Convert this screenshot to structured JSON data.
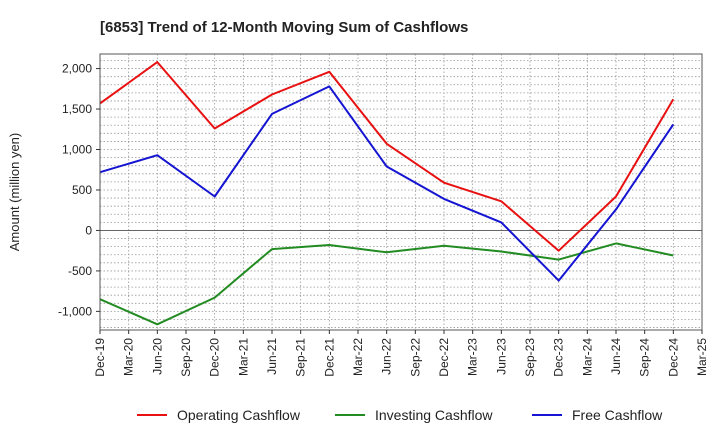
{
  "chart_data": {
    "type": "line",
    "title": "[6853]  Trend of 12-Month Moving Sum of Cashflows",
    "ylabel": "Amount (million yen)",
    "xlabel": "",
    "categories": [
      "Dec-19",
      "Mar-20",
      "Jun-20",
      "Sep-20",
      "Dec-20",
      "Mar-21",
      "Jun-21",
      "Sep-21",
      "Dec-21",
      "Mar-22",
      "Jun-22",
      "Sep-22",
      "Dec-22",
      "Mar-23",
      "Jun-23",
      "Sep-23",
      "Dec-23",
      "Mar-24",
      "Jun-24",
      "Sep-24",
      "Dec-24",
      "Mar-25"
    ],
    "ylim": [
      -1230,
      2180
    ],
    "yticks": [
      -1000,
      -500,
      0,
      500,
      1000,
      1500,
      2000
    ],
    "ytick_labels": [
      "-1,000",
      "-500",
      "0",
      "500",
      "1,000",
      "1,500",
      "2,000"
    ],
    "grid": true,
    "legend_position": "bottom",
    "series": [
      {
        "name": "Operating Cashflow",
        "color": "#e81010",
        "points": [
          [
            0,
            1570
          ],
          [
            2,
            2080
          ],
          [
            4,
            1260
          ],
          [
            6,
            1680
          ],
          [
            8,
            1960
          ],
          [
            10,
            1070
          ],
          [
            12,
            590
          ],
          [
            14,
            360
          ],
          [
            16,
            -250
          ],
          [
            18,
            420
          ],
          [
            20,
            1620
          ]
        ]
      },
      {
        "name": "Investing Cashflow",
        "color": "#228b22",
        "points": [
          [
            0,
            -850
          ],
          [
            2,
            -1160
          ],
          [
            4,
            -830
          ],
          [
            6,
            -230
          ],
          [
            8,
            -180
          ],
          [
            10,
            -270
          ],
          [
            12,
            -190
          ],
          [
            14,
            -260
          ],
          [
            16,
            -360
          ],
          [
            18,
            -160
          ],
          [
            20,
            -310
          ]
        ]
      },
      {
        "name": "Free Cashflow",
        "color": "#1414d2",
        "points": [
          [
            0,
            720
          ],
          [
            2,
            930
          ],
          [
            4,
            420
          ],
          [
            6,
            1440
          ],
          [
            8,
            1780
          ],
          [
            10,
            790
          ],
          [
            12,
            390
          ],
          [
            14,
            100
          ],
          [
            16,
            -620
          ],
          [
            18,
            260
          ],
          [
            20,
            1310
          ]
        ]
      }
    ]
  }
}
